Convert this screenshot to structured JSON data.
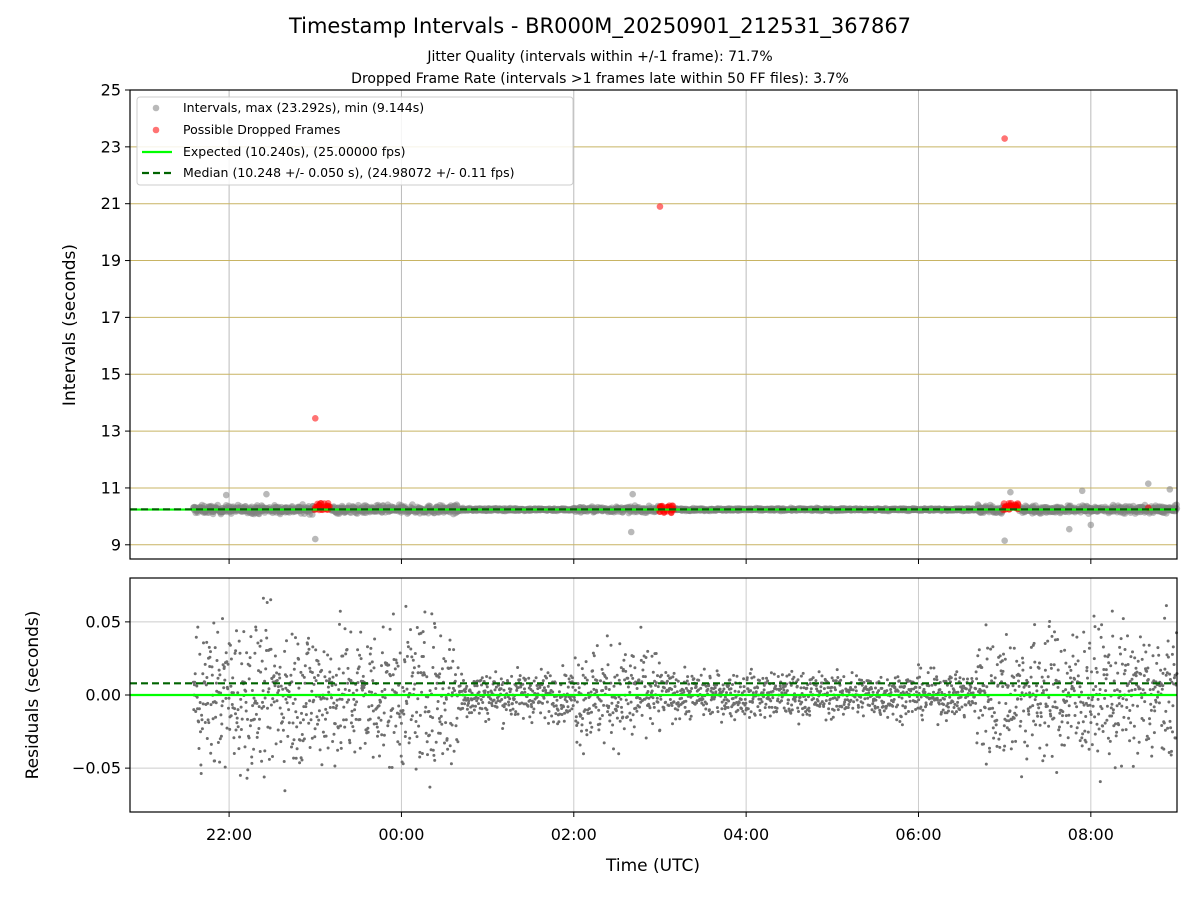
{
  "chart_data": [
    {
      "type": "scatter",
      "title": "Timestamp Intervals - BR000M_20250901_212531_367867",
      "subtitle_lines": [
        "Jitter Quality (intervals within +/-1 frame): 71.7%",
        "Dropped Frame Rate (intervals >1 frames late within 50 FF files): 3.7%"
      ],
      "xlabel": "",
      "ylabel": "Intervals (seconds)",
      "xlim": [
        "2025-09-01 20:51",
        "2025-09-02 09:00"
      ],
      "ylim": [
        8.5,
        25
      ],
      "yticks": [
        "9",
        "11",
        "13",
        "15",
        "17",
        "19",
        "21",
        "23",
        "25"
      ],
      "xticks": [
        "22:00",
        "00:00",
        "02:00",
        "04:00",
        "06:00",
        "08:00"
      ],
      "grid": "on",
      "legend_position": "top-left",
      "legend": [
        "Intervals, max (23.292s), min (9.144s)",
        "Possible Dropped Frames",
        "Expected (10.240s), (25.00000 fps)",
        "Median (10.248 +/- 0.050 s), (24.98072 +/- 0.11 fps)"
      ],
      "colors": {
        "intervals": "#808080",
        "dropped": "#ff0000",
        "expected": "#00ff00",
        "median": "#006400",
        "grid_y": "#c8b464",
        "grid_x": "#bbbbbb"
      },
      "expected_interval": 10.24,
      "median_interval": 10.248,
      "series": [
        {
          "name": "Intervals, max (23.292s), min (9.144s)",
          "points": [
            {
              "x": "2025-09-01 23:00",
              "y": 9.2
            },
            {
              "x": "2025-09-02 02:40",
              "y": 9.45
            },
            {
              "x": "2025-09-02 07:00",
              "y": 9.144
            },
            {
              "x": "2025-09-01 21:58",
              "y": 10.75
            },
            {
              "x": "2025-09-01 22:26",
              "y": 10.78
            },
            {
              "x": "2025-09-02 02:41",
              "y": 10.78
            },
            {
              "x": "2025-09-02 07:04",
              "y": 10.85
            },
            {
              "x": "2025-09-02 07:54",
              "y": 10.9
            },
            {
              "x": "2025-09-02 08:40",
              "y": 11.15
            },
            {
              "x": "2025-09-02 08:55",
              "y": 10.95
            },
            {
              "x": "2025-09-02 07:45",
              "y": 9.55
            },
            {
              "x": "2025-09-02 08:00",
              "y": 9.7
            }
          ]
        },
        {
          "name": "Possible Dropped Frames",
          "points": [
            {
              "x": "2025-09-01 23:00",
              "y": 13.45
            },
            {
              "x": "2025-09-02 03:00",
              "y": 20.9
            },
            {
              "x": "2025-09-02 07:00",
              "y": 23.292
            },
            {
              "x": "2025-09-02 08:40",
              "y": 10.3
            }
          ],
          "clusters": [
            {
              "from": "2025-09-01 22:59",
              "to": "2025-09-01 23:10",
              "y": 10.35
            },
            {
              "from": "2025-09-02 02:59",
              "to": "2025-09-02 03:10",
              "y": 10.25
            },
            {
              "from": "2025-09-02 06:59",
              "to": "2025-09-02 07:10",
              "y": 10.35
            }
          ]
        }
      ]
    },
    {
      "type": "scatter",
      "title": "",
      "xlabel": "Time (UTC)",
      "ylabel": "Residuals (seconds)",
      "xlim": [
        "2025-09-01 20:51",
        "2025-09-02 09:00"
      ],
      "ylim": [
        -0.08,
        0.08
      ],
      "yticks": [
        "−0.05",
        "0.00",
        "0.05"
      ],
      "xticks": [
        "22:00",
        "00:00",
        "02:00",
        "04:00",
        "06:00",
        "08:00"
      ],
      "grid": "on",
      "expected_residual": 0.0,
      "median_residual": 0.008,
      "series": [
        {
          "name": "Residuals",
          "spread_by_time_range": [
            {
              "from": "2025-09-01 21:35",
              "to": "2025-09-02 00:40",
              "spread": 0.065
            },
            {
              "from": "2025-09-02 00:40",
              "to": "2025-09-02 02:00",
              "spread": 0.022
            },
            {
              "from": "2025-09-02 02:00",
              "to": "2025-09-02 03:00",
              "spread": 0.045
            },
            {
              "from": "2025-09-02 03:00",
              "to": "2025-09-02 06:40",
              "spread": 0.02
            },
            {
              "from": "2025-09-02 06:40",
              "to": "2025-09-02 09:00",
              "spread": 0.06
            }
          ]
        }
      ]
    }
  ]
}
